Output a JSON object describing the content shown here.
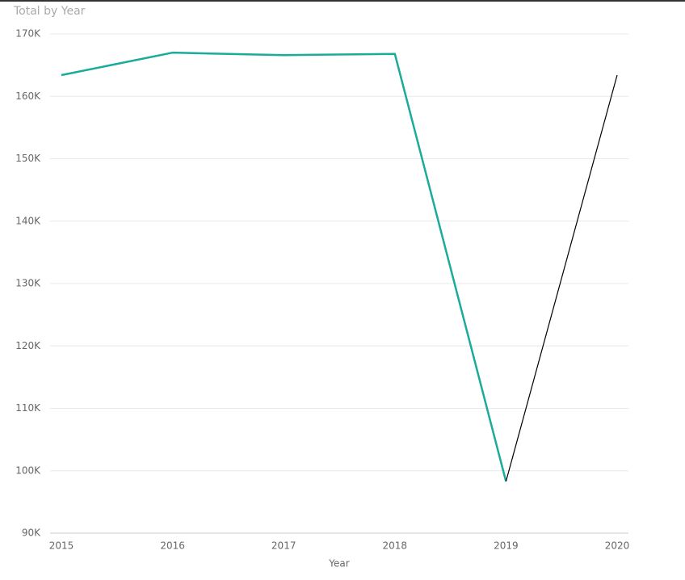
{
  "chart_data": {
    "type": "line",
    "title": "Total by Year",
    "x_label": "Year",
    "x": [
      2015,
      2016,
      2017,
      2018,
      2019,
      2020
    ],
    "xlim": [
      2015,
      2020
    ],
    "xticks": [
      2015,
      2016,
      2017,
      2018,
      2019,
      2020
    ],
    "series": [
      {
        "color": "#1aab9b",
        "width": 2.5,
        "values": [
          163400,
          167000,
          166600,
          166800,
          98300,
          null
        ]
      },
      {
        "color": "#000000",
        "width": 1.2,
        "values": [
          null,
          null,
          null,
          null,
          98300,
          163400
        ]
      }
    ],
    "ylim": [
      90000,
      170000
    ],
    "yticks": [
      {
        "value": 90000,
        "label": "90K"
      },
      {
        "value": 100000,
        "label": "100K"
      },
      {
        "value": 110000,
        "label": "110K"
      },
      {
        "value": 120000,
        "label": "120K"
      },
      {
        "value": 130000,
        "label": "130K"
      },
      {
        "value": 140000,
        "label": "140K"
      },
      {
        "value": 150000,
        "label": "150K"
      },
      {
        "value": 160000,
        "label": "160K"
      },
      {
        "value": 170000,
        "label": "170K"
      }
    ],
    "grid": true
  }
}
